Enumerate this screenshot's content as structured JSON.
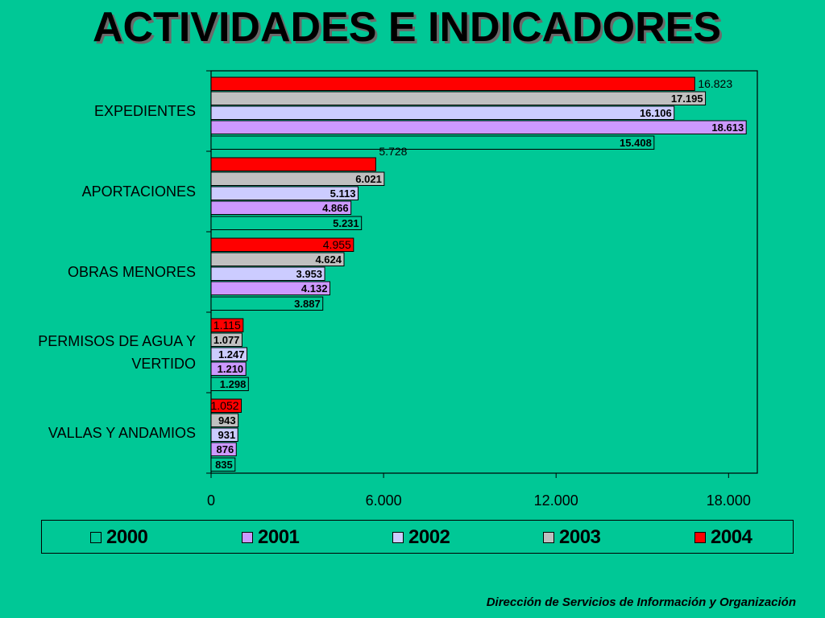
{
  "title": "ACTIVIDADES E INDICADORES",
  "footer": "Dirección de Servicios de  Información y Organización",
  "chart_data": {
    "type": "bar",
    "orientation": "horizontal",
    "categories": [
      "EXPEDIENTES",
      "APORTACIONES",
      "OBRAS MENORES",
      "PERMISOS DE AGUA Y VERTIDO",
      "VALLAS Y ANDAMIOS"
    ],
    "category_lines": [
      [
        "EXPEDIENTES"
      ],
      [
        "APORTACIONES"
      ],
      [
        "OBRAS MENORES"
      ],
      [
        "PERMISOS DE AGUA Y",
        "VERTIDO"
      ],
      [
        "VALLAS Y ANDAMIOS"
      ]
    ],
    "series": [
      {
        "name": "2000",
        "color": "#00c896",
        "values": [
          15408,
          5231,
          3887,
          1298,
          835
        ],
        "labels": [
          "15.408",
          "5.231",
          "3.887",
          "1.298",
          "835"
        ]
      },
      {
        "name": "2001",
        "color": "#cc99ff",
        "values": [
          18613,
          4866,
          4132,
          1210,
          876
        ],
        "labels": [
          "18.613",
          "4.866",
          "4.132",
          "1.210",
          "876"
        ]
      },
      {
        "name": "2002",
        "color": "#ccccff",
        "values": [
          16106,
          5113,
          3953,
          1247,
          931
        ],
        "labels": [
          "16.106",
          "5.113",
          "3.953",
          "1.247",
          "931"
        ]
      },
      {
        "name": "2003",
        "color": "#c0c0c0",
        "values": [
          17195,
          6021,
          4624,
          1077,
          943
        ],
        "labels": [
          "17.195",
          "6.021",
          "4.624",
          "1.077",
          "943"
        ]
      },
      {
        "name": "2004",
        "color": "#ff0000",
        "values": [
          16823,
          5728,
          4955,
          1115,
          1052
        ],
        "labels": [
          "16.823",
          "5.728",
          "4.955",
          "1.115",
          "1.052"
        ]
      }
    ],
    "xlim": [
      0,
      19000
    ],
    "xticks": [
      0,
      6000,
      12000,
      18000
    ],
    "xtick_labels": [
      "0",
      "6.000",
      "12.000",
      "18.000"
    ],
    "legend_position": "bottom",
    "grid": false
  }
}
